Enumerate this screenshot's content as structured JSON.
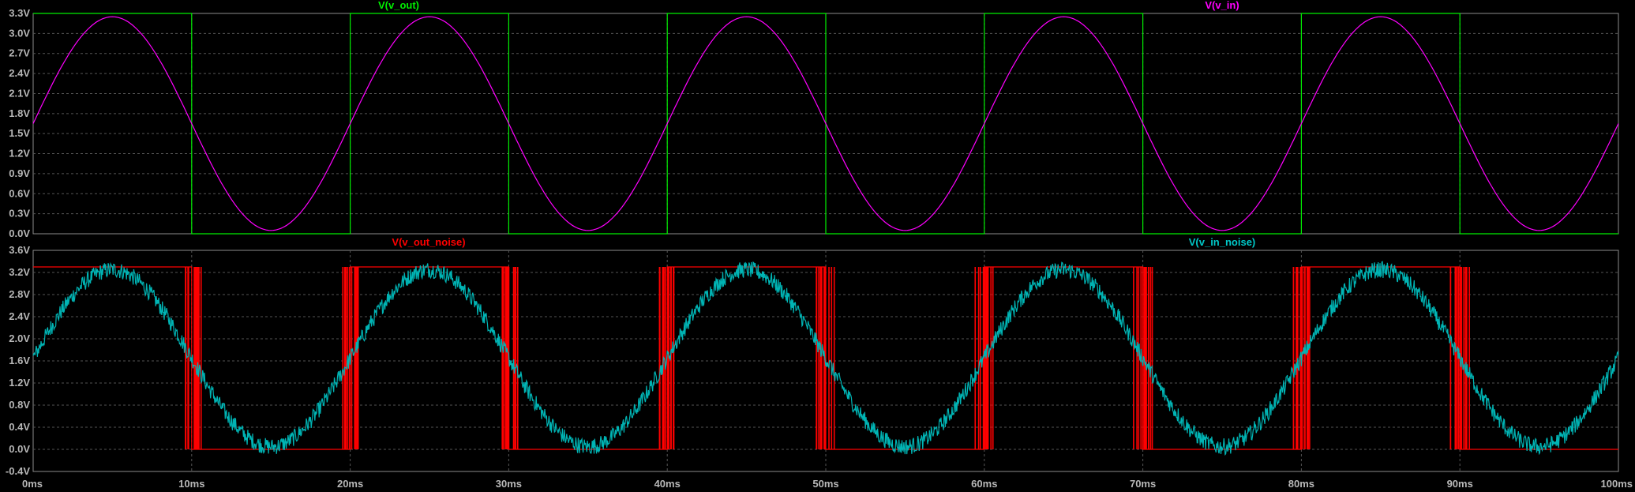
{
  "chart_data": [
    {
      "type": "line",
      "title": "",
      "xlabel": "",
      "ylabel": "",
      "xlim": [
        0,
        100
      ],
      "ylim": [
        0.0,
        3.3
      ],
      "x_ticks": [
        "0ms",
        "10ms",
        "20ms",
        "30ms",
        "40ms",
        "50ms",
        "60ms",
        "70ms",
        "80ms",
        "90ms",
        "100ms"
      ],
      "y_ticks": [
        "0.0V",
        "0.3V",
        "0.6V",
        "0.9V",
        "1.2V",
        "1.5V",
        "1.8V",
        "2.1V",
        "2.4V",
        "2.7V",
        "3.0V",
        "3.3V"
      ],
      "grid": true,
      "series": [
        {
          "name": "V(v_out)",
          "color": "#00ee00",
          "x": [
            0,
            10,
            10,
            20,
            20,
            30,
            30,
            40,
            40,
            50,
            50,
            60,
            60,
            70,
            70,
            80,
            80,
            90,
            90,
            100
          ],
          "values": [
            3.3,
            3.3,
            0.0,
            0.0,
            3.3,
            3.3,
            0.0,
            0.0,
            3.3,
            3.3,
            0.0,
            0.0,
            3.3,
            3.3,
            0.0,
            0.0,
            3.3,
            3.3,
            0.0,
            0.0
          ]
        },
        {
          "name": "V(v_in)",
          "color": "#ff00ff",
          "x": [
            0,
            2.5,
            5,
            7.5,
            10,
            12.5,
            15,
            17.5,
            20,
            22.5,
            25,
            27.5,
            30,
            32.5,
            35,
            37.5,
            40,
            42.5,
            45,
            47.5,
            50,
            52.5,
            55,
            57.5,
            60,
            62.5,
            65,
            67.5,
            70,
            72.5,
            75,
            77.5,
            80,
            82.5,
            85,
            87.5,
            90,
            92.5,
            95,
            97.5,
            100
          ],
          "values": [
            1.65,
            2.77,
            3.25,
            2.77,
            1.65,
            0.53,
            0.05,
            0.53,
            1.65,
            2.77,
            3.25,
            2.77,
            1.65,
            0.53,
            0.05,
            0.53,
            1.65,
            2.77,
            3.25,
            2.77,
            1.65,
            0.53,
            0.05,
            0.53,
            1.65,
            2.77,
            3.25,
            2.77,
            1.65,
            0.53,
            0.05,
            0.53,
            1.65,
            2.77,
            3.25,
            2.77,
            1.65,
            0.53,
            0.05,
            0.53,
            1.65
          ]
        }
      ]
    },
    {
      "type": "line",
      "title": "",
      "xlabel": "",
      "ylabel": "",
      "xlim": [
        0,
        100
      ],
      "ylim": [
        -0.4,
        3.6
      ],
      "x_ticks": [
        "0ms",
        "10ms",
        "20ms",
        "30ms",
        "40ms",
        "50ms",
        "60ms",
        "70ms",
        "80ms",
        "90ms",
        "100ms"
      ],
      "y_ticks": [
        "-0.4V",
        "0.0V",
        "0.4V",
        "0.8V",
        "1.2V",
        "1.6V",
        "2.0V",
        "2.4V",
        "2.8V",
        "3.2V",
        "3.6V"
      ],
      "grid": true,
      "series": [
        {
          "name": "V(v_out_noise)",
          "color": "#ff0000",
          "x": [
            0,
            10,
            10,
            20,
            20,
            30,
            30,
            40,
            40,
            50,
            50,
            60,
            60,
            70,
            70,
            80,
            80,
            90,
            90,
            100
          ],
          "values": [
            3.3,
            3.3,
            0.0,
            0.0,
            3.3,
            3.3,
            0.0,
            0.0,
            3.3,
            3.3,
            0.0,
            0.0,
            3.3,
            3.3,
            0.0,
            0.0,
            3.3,
            3.3,
            0.0,
            0.0
          ],
          "transition_chatter_ms": 0.6
        },
        {
          "name": "V(v_in_noise)",
          "color": "#00b4b4",
          "x": [
            0,
            2.5,
            5,
            7.5,
            10,
            12.5,
            15,
            17.5,
            20,
            22.5,
            25,
            27.5,
            30,
            32.5,
            35,
            37.5,
            40,
            42.5,
            45,
            47.5,
            50,
            52.5,
            55,
            57.5,
            60,
            62.5,
            65,
            67.5,
            70,
            72.5,
            75,
            77.5,
            80,
            82.5,
            85,
            87.5,
            90,
            92.5,
            95,
            97.5,
            100
          ],
          "values": [
            1.65,
            2.77,
            3.25,
            2.77,
            1.65,
            0.53,
            0.05,
            0.53,
            1.65,
            2.77,
            3.25,
            2.77,
            1.65,
            0.53,
            0.05,
            0.53,
            1.65,
            2.77,
            3.25,
            2.77,
            1.65,
            0.53,
            0.05,
            0.53,
            1.65,
            2.77,
            3.25,
            2.77,
            1.65,
            0.53,
            0.05,
            0.53,
            1.65,
            2.77,
            3.25,
            2.77,
            1.65,
            0.53,
            0.05,
            0.53,
            1.65
          ],
          "noise_band_v": 0.15
        }
      ]
    }
  ]
}
